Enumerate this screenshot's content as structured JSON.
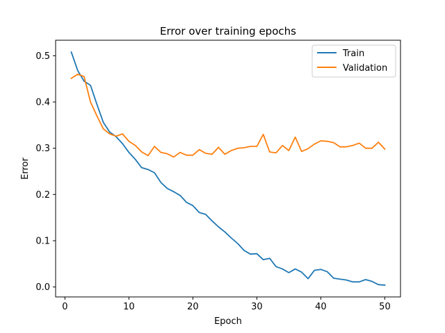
{
  "chart_data": {
    "type": "line",
    "title": "Error over training epochs",
    "xlabel": "Epoch",
    "ylabel": "Error",
    "xlim": [
      -1.45,
      52.45
    ],
    "ylim": [
      -0.0215,
      0.5335
    ],
    "xticks": [
      0,
      10,
      20,
      30,
      40,
      50
    ],
    "yticks": [
      0.0,
      0.1,
      0.2,
      0.3,
      0.4,
      0.5
    ],
    "xtick_labels": [
      "0",
      "10",
      "20",
      "30",
      "40",
      "50"
    ],
    "ytick_labels": [
      "0.0",
      "0.1",
      "0.2",
      "0.3",
      "0.4",
      "0.5"
    ],
    "grid": false,
    "legend": "top-right",
    "x": [
      1,
      2,
      3,
      4,
      5,
      6,
      7,
      8,
      9,
      10,
      11,
      12,
      13,
      14,
      15,
      16,
      17,
      18,
      19,
      20,
      21,
      22,
      23,
      24,
      25,
      26,
      27,
      28,
      29,
      30,
      31,
      32,
      33,
      34,
      35,
      36,
      37,
      38,
      39,
      40,
      41,
      42,
      43,
      44,
      45,
      46,
      47,
      48,
      49,
      50
    ],
    "series": [
      {
        "name": "Train",
        "color": "#1f77b4",
        "values": [
          0.508,
          0.468,
          0.445,
          0.436,
          0.395,
          0.356,
          0.335,
          0.325,
          0.31,
          0.291,
          0.276,
          0.258,
          0.254,
          0.247,
          0.226,
          0.213,
          0.206,
          0.198,
          0.183,
          0.176,
          0.161,
          0.157,
          0.143,
          0.13,
          0.119,
          0.106,
          0.094,
          0.079,
          0.071,
          0.072,
          0.059,
          0.062,
          0.044,
          0.039,
          0.031,
          0.039,
          0.032,
          0.018,
          0.036,
          0.038,
          0.033,
          0.019,
          0.017,
          0.015,
          0.011,
          0.011,
          0.016,
          0.012,
          0.005,
          0.004
        ]
      },
      {
        "name": "Validation",
        "color": "#ff7f0e",
        "values": [
          0.451,
          0.46,
          0.455,
          0.4,
          0.37,
          0.342,
          0.331,
          0.326,
          0.331,
          0.315,
          0.306,
          0.292,
          0.284,
          0.304,
          0.291,
          0.288,
          0.281,
          0.291,
          0.285,
          0.285,
          0.297,
          0.289,
          0.287,
          0.302,
          0.287,
          0.295,
          0.3,
          0.301,
          0.304,
          0.304,
          0.33,
          0.292,
          0.29,
          0.306,
          0.295,
          0.324,
          0.293,
          0.299,
          0.309,
          0.316,
          0.315,
          0.312,
          0.303,
          0.303,
          0.306,
          0.311,
          0.3,
          0.3,
          0.313,
          0.298
        ]
      }
    ]
  }
}
